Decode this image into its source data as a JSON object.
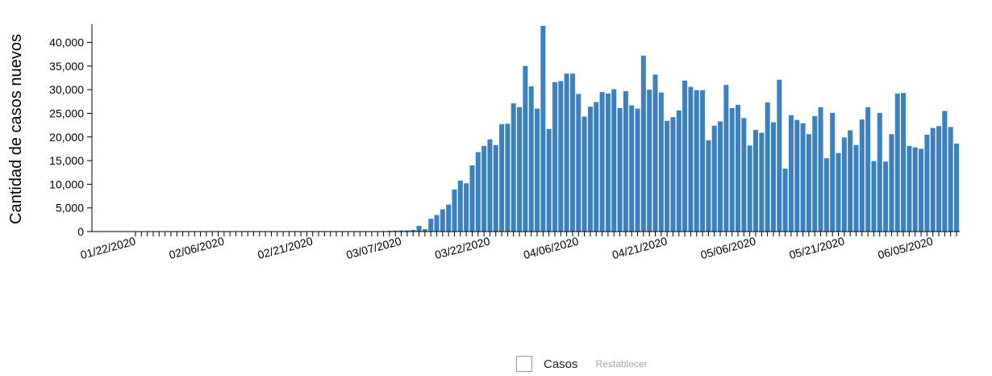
{
  "chart_data": {
    "type": "bar",
    "ylabel": "Cantidad de casos nuevos",
    "xlabel": "",
    "ylim": [
      0,
      43500
    ],
    "y_ticks": [
      0,
      5000,
      10000,
      15000,
      20000,
      25000,
      30000,
      35000,
      40000
    ],
    "start_date": "01/22/2020",
    "x_tick_labels": [
      "01/22/2020",
      "02/06/2020",
      "02/21/2020",
      "03/07/2020",
      "03/22/2020",
      "04/06/2020",
      "04/21/2020",
      "05/06/2020",
      "05/21/2020",
      "06/05/2020"
    ],
    "bar_color": "#3b80bf",
    "series": [
      {
        "name": "Casos",
        "values": [
          0,
          0,
          0,
          0,
          0,
          0,
          0,
          0,
          0,
          0,
          0,
          0,
          0,
          0,
          0,
          0,
          0,
          0,
          0,
          0,
          0,
          0,
          0,
          0,
          0,
          0,
          0,
          0,
          0,
          0,
          0,
          0,
          0,
          0,
          0,
          0,
          0,
          0,
          0,
          0,
          0,
          0,
          100,
          150,
          200,
          250,
          250,
          350,
          1200,
          500,
          2700,
          3500,
          4700,
          5700,
          8900,
          10800,
          10200,
          14000,
          16800,
          18100,
          19500,
          18300,
          22700,
          22800,
          27100,
          26300,
          35000,
          30700,
          26000,
          43500,
          21700,
          31600,
          31800,
          33400,
          33400,
          29100,
          24300,
          26400,
          27400,
          29500,
          29200,
          30100,
          26100,
          29700,
          26700,
          26000,
          37200,
          30000,
          33200,
          29400,
          23400,
          24200,
          25600,
          31900,
          30600,
          29900,
          29900,
          19300,
          22400,
          23300,
          31000,
          26100,
          26800,
          24000,
          18200,
          21500,
          20900,
          27300,
          23100,
          32100,
          13300,
          24600,
          23600,
          22900,
          20600,
          24400,
          26300,
          15500,
          25100,
          16600,
          19900,
          21400,
          18300,
          23700,
          26300,
          14900,
          25100,
          14800,
          20600,
          29200,
          29300,
          18100,
          17800,
          17500,
          20500,
          21900,
          22300,
          25500,
          22100,
          18600
        ]
      }
    ]
  },
  "legend": {
    "label": "Casos",
    "reset_label": "Restablecer"
  }
}
